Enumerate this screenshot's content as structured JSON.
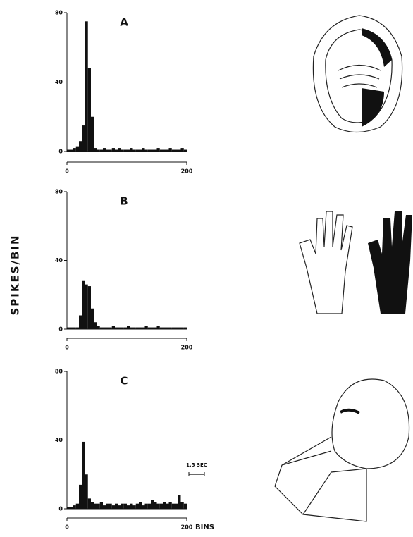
{
  "chart_data": [
    {
      "type": "histogram",
      "title": "A",
      "ylabel": "SPIKES/BIN",
      "color": "#111111",
      "bins": [
        0,
        5,
        10,
        15,
        20,
        25,
        30,
        35,
        40,
        45,
        50,
        55,
        60,
        65,
        70,
        75,
        80,
        85,
        90,
        95,
        100,
        105,
        110,
        115,
        120,
        125,
        130,
        135,
        140,
        145,
        150,
        155,
        160,
        165,
        170,
        175,
        180,
        185,
        190,
        195,
        200
      ],
      "values": [
        1,
        1,
        2,
        3,
        6,
        15,
        75,
        48,
        20,
        2,
        1,
        1,
        2,
        1,
        1,
        2,
        1,
        2,
        1,
        1,
        1,
        2,
        1,
        1,
        1,
        2,
        1,
        1,
        1,
        1,
        2,
        1,
        1,
        1,
        2,
        1,
        1,
        1,
        2,
        1
      ],
      "xlim": [
        0,
        200
      ],
      "xticks": [
        0,
        200
      ],
      "ylim": [
        0,
        80
      ],
      "yticks": [
        0,
        40,
        80
      ]
    },
    {
      "type": "histogram",
      "title": "B",
      "color": "#111111",
      "bins": [
        0,
        5,
        10,
        15,
        20,
        25,
        30,
        35,
        40,
        45,
        50,
        55,
        60,
        65,
        70,
        75,
        80,
        85,
        90,
        95,
        100,
        105,
        110,
        115,
        120,
        125,
        130,
        135,
        140,
        145,
        150,
        155,
        160,
        165,
        170,
        175,
        180,
        185,
        190,
        195,
        200
      ],
      "values": [
        1,
        1,
        1,
        1,
        8,
        28,
        26,
        25,
        12,
        4,
        2,
        1,
        1,
        1,
        1,
        2,
        1,
        1,
        1,
        1,
        2,
        1,
        1,
        1,
        1,
        1,
        2,
        1,
        1,
        1,
        2,
        1,
        1,
        1,
        1,
        1,
        1,
        1,
        1,
        1
      ],
      "xlim": [
        0,
        200
      ],
      "xticks": [
        0,
        200
      ],
      "ylim": [
        0,
        80
      ],
      "yticks": [
        0,
        40,
        80
      ]
    },
    {
      "type": "histogram",
      "title": "C",
      "xlabel": "BINS",
      "annotation": "1.5 SEC",
      "color": "#111111",
      "bins": [
        0,
        5,
        10,
        15,
        20,
        25,
        30,
        35,
        40,
        45,
        50,
        55,
        60,
        65,
        70,
        75,
        80,
        85,
        90,
        95,
        100,
        105,
        110,
        115,
        120,
        125,
        130,
        135,
        140,
        145,
        150,
        155,
        160,
        165,
        170,
        175,
        180,
        185,
        190,
        195,
        200
      ],
      "values": [
        1,
        1,
        2,
        3,
        14,
        39,
        20,
        6,
        4,
        3,
        3,
        4,
        2,
        3,
        3,
        2,
        3,
        2,
        3,
        3,
        2,
        3,
        2,
        3,
        4,
        2,
        3,
        3,
        5,
        4,
        3,
        3,
        4,
        3,
        4,
        3,
        3,
        8,
        4,
        3
      ],
      "xlim": [
        0,
        200
      ],
      "xticks": [
        0,
        200
      ],
      "ylim": [
        0,
        80
      ],
      "yticks": [
        0,
        40,
        80
      ]
    }
  ]
}
